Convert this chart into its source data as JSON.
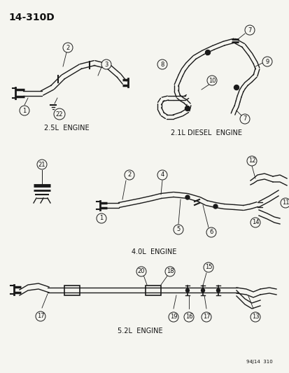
{
  "title": "14-310D",
  "bg_color": "#f5f5f0",
  "line_color": "#1a1a1a",
  "text_color": "#111111",
  "fig_width": 4.14,
  "fig_height": 5.33,
  "dpi": 100,
  "diagram_code": "94J14  310",
  "label_25": "2.5L  ENGINE",
  "label_21": "2.1L DIESEL  ENGINE",
  "label_40": "4.0L  ENGINE",
  "label_52": "5.2L  ENGINE"
}
